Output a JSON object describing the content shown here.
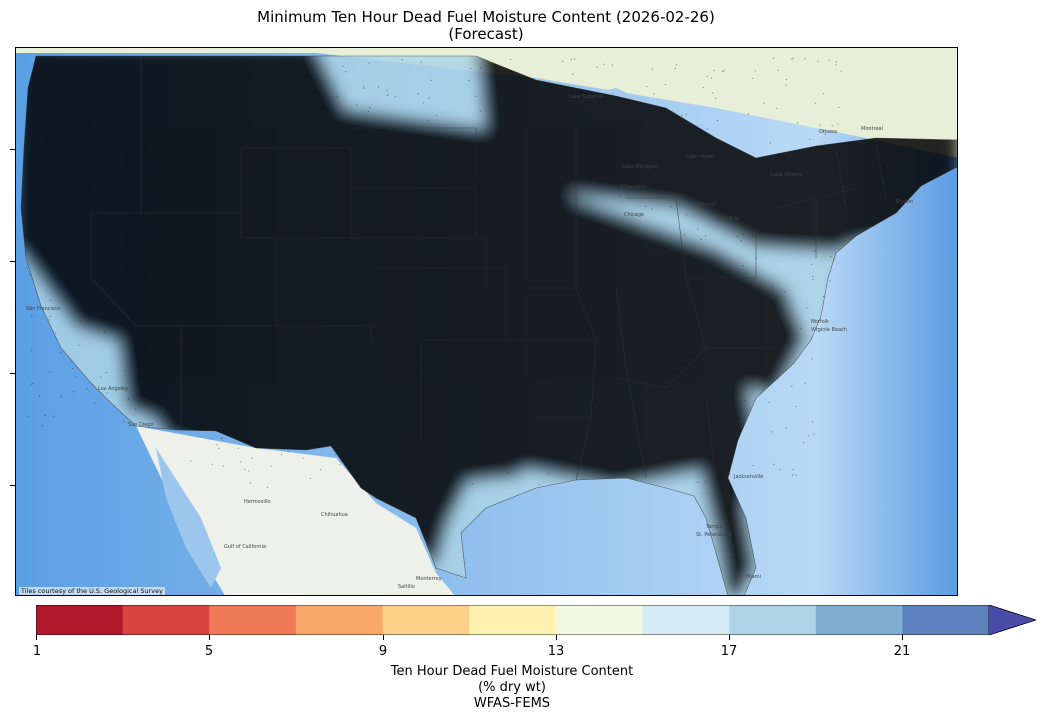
{
  "title_line1": "Minimum Ten Hour Dead Fuel Moisture Content (2026-02-26)",
  "title_line2": "(Forecast)",
  "credit": "Tiles courtesy of the U.S. Geological Survey",
  "colorbar": {
    "ticks": [
      "1",
      "5",
      "9",
      "13",
      "17",
      "21"
    ],
    "colors": [
      "#b2182b",
      "#d6463f",
      "#f07a58",
      "#f9a86a",
      "#fdd08a",
      "#fff2b0",
      "#f2f9e0",
      "#d6ecf4",
      "#acd3e6",
      "#80aed2",
      "#5f81bd",
      "#4a4da8"
    ],
    "label_line1": "Ten Hour Dead Fuel Moisture Content",
    "label_line2": "(% dry wt)",
    "label_line3": "WFAS-FEMS"
  },
  "map_labels": [
    "Lake Superior",
    "Lake Michigan",
    "Lake Huron",
    "Lake Erie",
    "Lake Ontario",
    "Milwaukee",
    "Chicago",
    "Detroit",
    "Ottawa",
    "Montreal",
    "Boston",
    "San Francisco",
    "Los Angeles",
    "San Diego",
    "Hermosillo",
    "Chihuahua",
    "Gulf of California",
    "Monterrey",
    "Saltillo",
    "Jacksonville",
    "Tampa",
    "St. Petersburg",
    "Miami",
    "Norfolk",
    "Virginia Beach"
  ]
}
